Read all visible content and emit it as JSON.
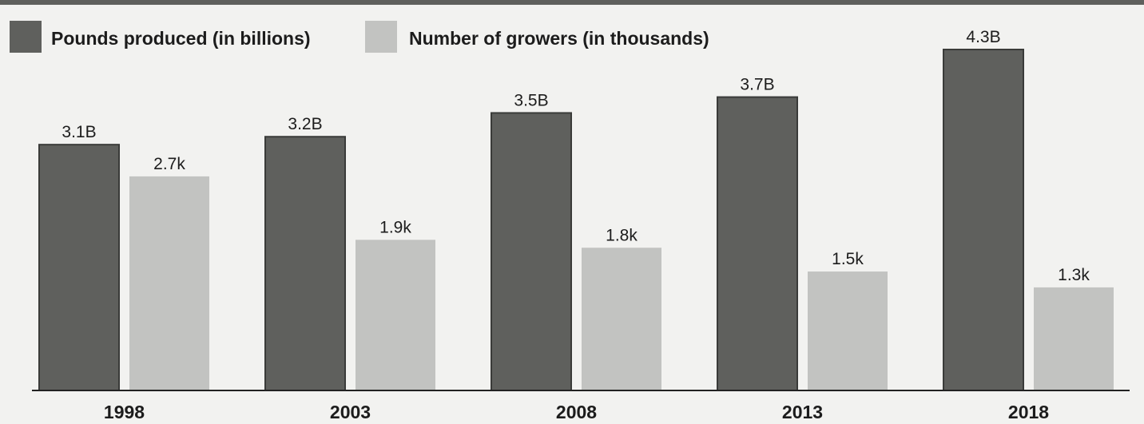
{
  "chart_data": {
    "type": "bar",
    "title": "",
    "xlabel": "",
    "ylabel": "",
    "categories": [
      "1998",
      "2003",
      "2008",
      "2013",
      "2018"
    ],
    "series": [
      {
        "name": "Pounds produced (in billions)",
        "values": [
          3.1,
          3.2,
          3.5,
          3.7,
          4.3
        ],
        "labels": [
          "3.1B",
          "3.2B",
          "3.5B",
          "3.7B",
          "4.3B"
        ],
        "color": "#5f605d"
      },
      {
        "name": "Number of growers (in thousands)",
        "values": [
          2.7,
          1.9,
          1.8,
          1.5,
          1.3
        ],
        "labels": [
          "2.7k",
          "1.9k",
          "1.8k",
          "1.5k",
          "1.3k"
        ],
        "color": "#c2c3c1"
      }
    ],
    "ylim": [
      0,
      4.3
    ],
    "grid": false,
    "legend": "top-left"
  }
}
